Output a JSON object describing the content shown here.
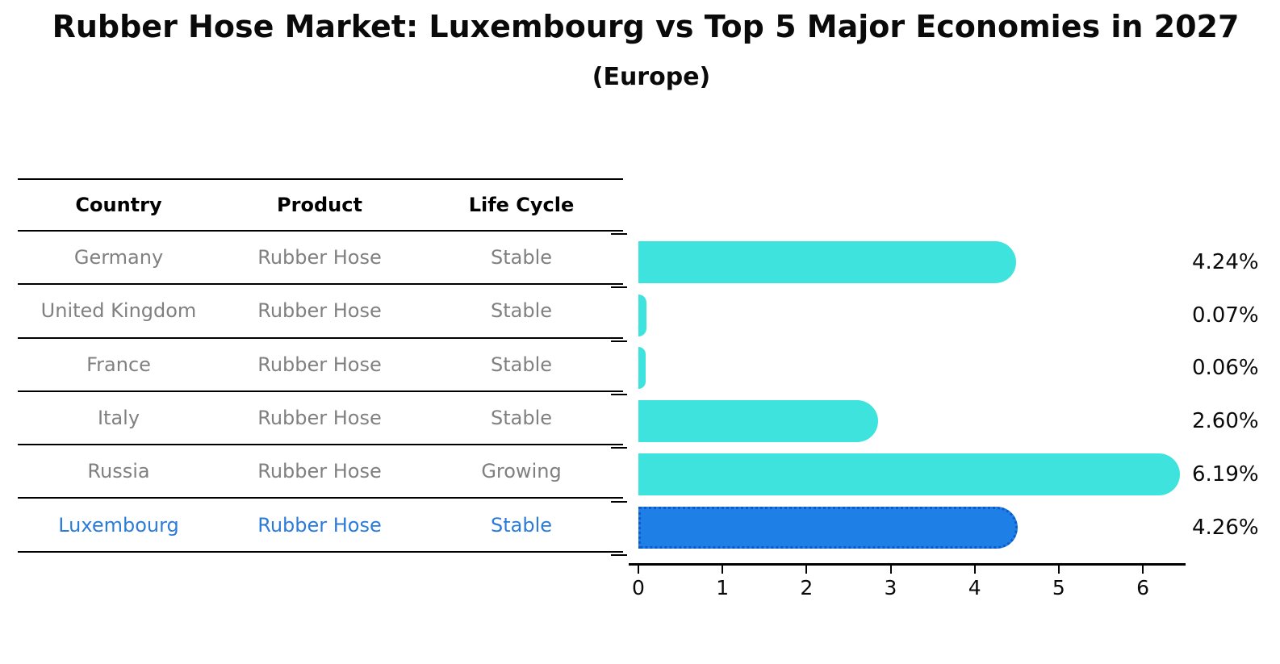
{
  "chart_data": {
    "type": "bar",
    "orientation": "horizontal",
    "title": "Rubber Hose Market: Luxembourg vs Top 5 Major Economies in 2027",
    "subtitle": "(Europe)",
    "categories": [
      "Germany",
      "United Kingdom",
      "France",
      "Italy",
      "Russia",
      "Luxembourg"
    ],
    "values": [
      4.24,
      0.07,
      0.06,
      2.6,
      6.19,
      4.26
    ],
    "value_labels": [
      "4.24%",
      "0.07%",
      "0.06%",
      "2.60%",
      "6.19%",
      "4.26%"
    ],
    "xlabel": "",
    "ylabel": "",
    "xlim": [
      0,
      6.5
    ],
    "xtick_labels": [
      "0",
      "1",
      "2",
      "3",
      "4",
      "5",
      "6"
    ],
    "grid": false,
    "legend": false,
    "bar_color": "#3ee3de",
    "highlight_index": 5,
    "highlight_color": "#1e7fe6",
    "highlight_border_color": "#1059c9"
  },
  "table": {
    "headers": [
      "Country",
      "Product",
      "Life Cycle"
    ],
    "rows": [
      [
        "Germany",
        "Rubber Hose",
        "Stable"
      ],
      [
        "United Kingdom",
        "Rubber Hose",
        "Stable"
      ],
      [
        "France",
        "Rubber Hose",
        "Stable"
      ],
      [
        "Italy",
        "Rubber Hose",
        "Stable"
      ],
      [
        "Russia",
        "Rubber Hose",
        "Growing"
      ],
      [
        "Luxembourg",
        "Rubber Hose",
        "Stable"
      ]
    ],
    "highlight_row_index": 5,
    "highlight_text_color": "#2b7bd9",
    "body_text_color": "#808080"
  }
}
